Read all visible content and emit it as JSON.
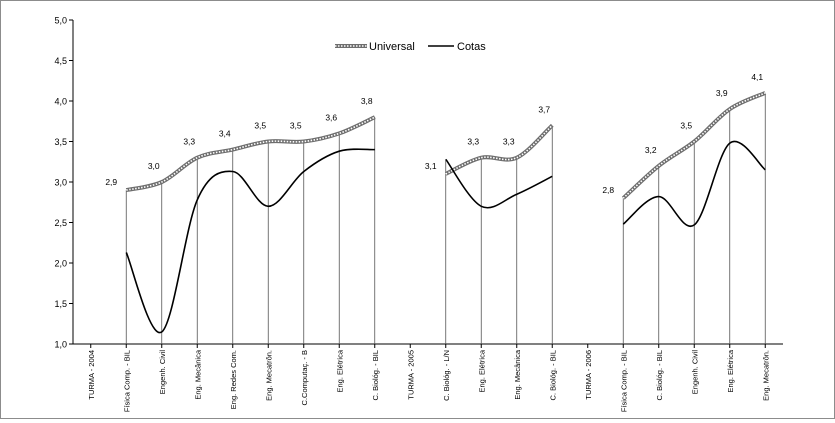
{
  "chart_data": {
    "type": "line",
    "title": "",
    "xlabel": "",
    "ylabel": "",
    "ylim": [
      1.0,
      5.0
    ],
    "yticks": [
      "1,0",
      "1,5",
      "2,0",
      "2,5",
      "3,0",
      "3,5",
      "4,0",
      "4,5",
      "5,0"
    ],
    "grid": false,
    "legend_position": "top-center",
    "categories": [
      "TURMA - 2004",
      "Física Comp. - BIL",
      "Engenh. Civil",
      "Eng. Mecânica",
      "Eng. Redes Com.",
      "Eng. Mecatrôn.",
      "C.Computaç. - B",
      "Eng. Elétrica",
      "C. Biológ. - BIL",
      "TURMA - 2005",
      "C. Biológ. - L/N",
      "Eng. Elétrica",
      "Eng. Mecânica",
      "C. Biológ. - BIL",
      "TURMA - 2006",
      "Física Comp. - BIL",
      "C. Biológ. - BIL",
      "Engenh. Civil",
      "Eng. Elétrica",
      "Eng. Mecatrôn."
    ],
    "series": [
      {
        "name": "Universal",
        "color": "#7a7a7a",
        "values": [
          null,
          2.9,
          3.0,
          3.3,
          3.4,
          3.5,
          3.5,
          3.6,
          3.8,
          null,
          3.1,
          3.3,
          3.3,
          3.7,
          null,
          2.8,
          3.2,
          3.5,
          3.9,
          4.1
        ]
      },
      {
        "name": "Cotas",
        "color": "#000000",
        "values": [
          null,
          2.13,
          1.15,
          2.78,
          3.13,
          2.7,
          3.13,
          3.38,
          3.4,
          null,
          3.28,
          2.7,
          2.85,
          3.07,
          null,
          2.48,
          2.82,
          2.47,
          3.48,
          3.15
        ]
      }
    ],
    "data_labels": [
      {
        "index": 1,
        "text": "2,9"
      },
      {
        "index": 2,
        "text": "3,0"
      },
      {
        "index": 3,
        "text": "3,3"
      },
      {
        "index": 4,
        "text": "3,4"
      },
      {
        "index": 5,
        "text": "3,5"
      },
      {
        "index": 6,
        "text": "3,5"
      },
      {
        "index": 7,
        "text": "3,6"
      },
      {
        "index": 8,
        "text": "3,8"
      },
      {
        "index": 10,
        "text": "3,1"
      },
      {
        "index": 11,
        "text": "3,3"
      },
      {
        "index": 12,
        "text": "3,3"
      },
      {
        "index": 13,
        "text": "3,7"
      },
      {
        "index": 15,
        "text": "2,8"
      },
      {
        "index": 16,
        "text": "3,2"
      },
      {
        "index": 17,
        "text": "3,5"
      },
      {
        "index": 18,
        "text": "3,9"
      },
      {
        "index": 19,
        "text": "4,1"
      }
    ]
  }
}
